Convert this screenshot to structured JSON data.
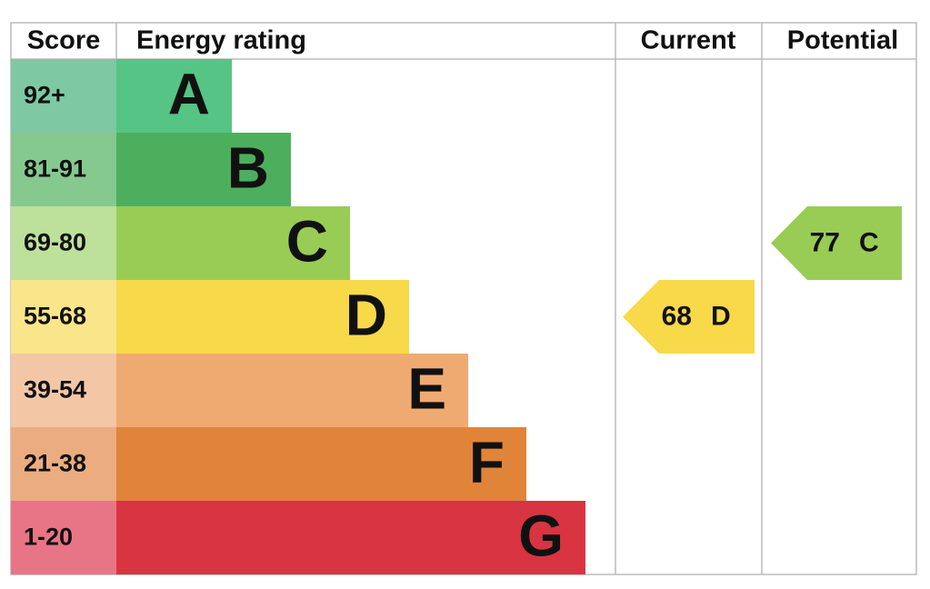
{
  "header": {
    "score": "Score",
    "rating": "Energy rating",
    "current": "Current",
    "potential": "Potential"
  },
  "bands": [
    {
      "score": "92+",
      "letter": "A"
    },
    {
      "score": "81-91",
      "letter": "B"
    },
    {
      "score": "69-80",
      "letter": "C"
    },
    {
      "score": "55-68",
      "letter": "D"
    },
    {
      "score": "39-54",
      "letter": "E"
    },
    {
      "score": "21-38",
      "letter": "F"
    },
    {
      "score": "1-20",
      "letter": "G"
    }
  ],
  "current": {
    "value": "68",
    "letter": "D"
  },
  "potential": {
    "value": "77",
    "letter": "C"
  }
}
